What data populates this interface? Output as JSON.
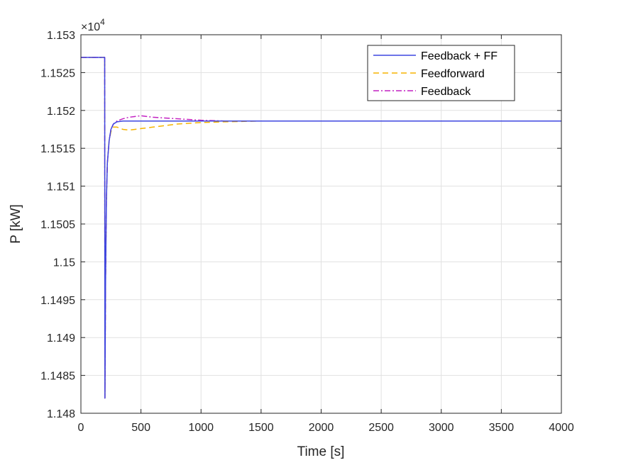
{
  "chart_data": {
    "type": "line",
    "title": "",
    "xlabel": "Time [s]",
    "ylabel": "P [kW]",
    "xlim": [
      0,
      4000
    ],
    "ylim": [
      1.148,
      1.153
    ],
    "y_exponent_label": "×10",
    "y_exponent": "4",
    "grid": true,
    "legend_position": "top-right",
    "x_ticks": [
      "0",
      "500",
      "1000",
      "1500",
      "2000",
      "2500",
      "3000",
      "3500",
      "4000"
    ],
    "x_tick_values": [
      0,
      500,
      1000,
      1500,
      2000,
      2500,
      3000,
      3500,
      4000
    ],
    "y_ticks": [
      "1.148",
      "1.1485",
      "1.149",
      "1.1495",
      "1.15",
      "1.1505",
      "1.151",
      "1.1515",
      "1.152",
      "1.1525",
      "1.153"
    ],
    "y_tick_values": [
      1.148,
      1.1485,
      1.149,
      1.1495,
      1.15,
      1.1505,
      1.151,
      1.1515,
      1.152,
      1.1525,
      1.153
    ],
    "series": [
      {
        "name": "Feedback + FF",
        "color": "#3d46e0",
        "style": "solid",
        "x": [
          0,
          198,
          200,
          205,
          212,
          220,
          235,
          250,
          270,
          300,
          350,
          400,
          500,
          600,
          800,
          1000,
          1500,
          2000,
          3000,
          4000
        ],
        "y": [
          1.1527,
          1.1527,
          1.1482,
          1.1497,
          1.1508,
          1.1513,
          1.1516,
          1.15175,
          1.15182,
          1.15185,
          1.15186,
          1.15186,
          1.15186,
          1.15186,
          1.15186,
          1.15186,
          1.15186,
          1.15186,
          1.15186,
          1.15186
        ]
      },
      {
        "name": "Feedforward",
        "color": "#f5b400",
        "style": "dashed",
        "x": [
          0,
          198,
          200,
          205,
          212,
          220,
          235,
          250,
          270,
          300,
          350,
          400,
          500,
          600,
          800,
          1000,
          1200,
          1500,
          2000,
          3000,
          4000
        ],
        "y": [
          1.1527,
          1.1527,
          1.1482,
          1.1497,
          1.1508,
          1.1513,
          1.1516,
          1.15172,
          1.15178,
          1.15178,
          1.15175,
          1.15174,
          1.15176,
          1.15178,
          1.15182,
          1.15184,
          1.15185,
          1.15186,
          1.15186,
          1.15186,
          1.15186
        ]
      },
      {
        "name": "Feedback",
        "color": "#c220c2",
        "style": "dashdot",
        "x": [
          0,
          198,
          200,
          205,
          212,
          220,
          235,
          250,
          270,
          300,
          350,
          400,
          450,
          500,
          550,
          600,
          700,
          800,
          1000,
          1200,
          1500,
          2000,
          3000,
          4000
        ],
        "y": [
          1.1527,
          1.1527,
          1.1482,
          1.1497,
          1.1508,
          1.1513,
          1.1516,
          1.15175,
          1.15182,
          1.15186,
          1.15189,
          1.15191,
          1.15192,
          1.15193,
          1.15192,
          1.15191,
          1.1519,
          1.15189,
          1.15187,
          1.15186,
          1.15186,
          1.15186,
          1.15186,
          1.15186
        ]
      }
    ]
  }
}
